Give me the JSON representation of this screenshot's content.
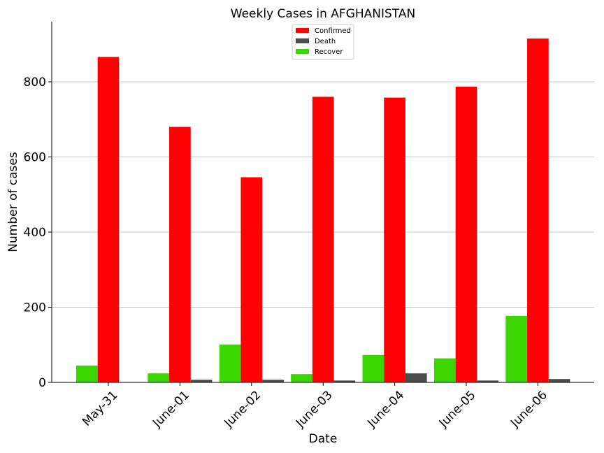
{
  "chart_data": {
    "type": "bar",
    "title": "Weekly Cases in AFGHANISTAN",
    "xlabel": "Date",
    "ylabel": "Number of cases",
    "categories": [
      "May-31",
      "June-01",
      "June-02",
      "June-03",
      "June-04",
      "June-05",
      "June-06"
    ],
    "series": [
      {
        "name": "Recover",
        "color": "#3bd600",
        "values": [
          45,
          24,
          101,
          22,
          73,
          64,
          177
        ]
      },
      {
        "name": "Confirmed",
        "color": "#ff0000",
        "values": [
          866,
          680,
          546,
          760,
          758,
          787,
          915
        ]
      },
      {
        "name": "Death",
        "color": "#4d4d4d",
        "values": [
          1,
          7,
          7,
          5,
          24,
          5,
          9
        ]
      }
    ],
    "legend_order": [
      "Confirmed",
      "Death",
      "Recover"
    ],
    "legend_position": "top-center",
    "yticks": [
      0,
      200,
      400,
      600,
      800
    ],
    "ylim": [
      0,
      960
    ],
    "grid": "horizontal"
  }
}
